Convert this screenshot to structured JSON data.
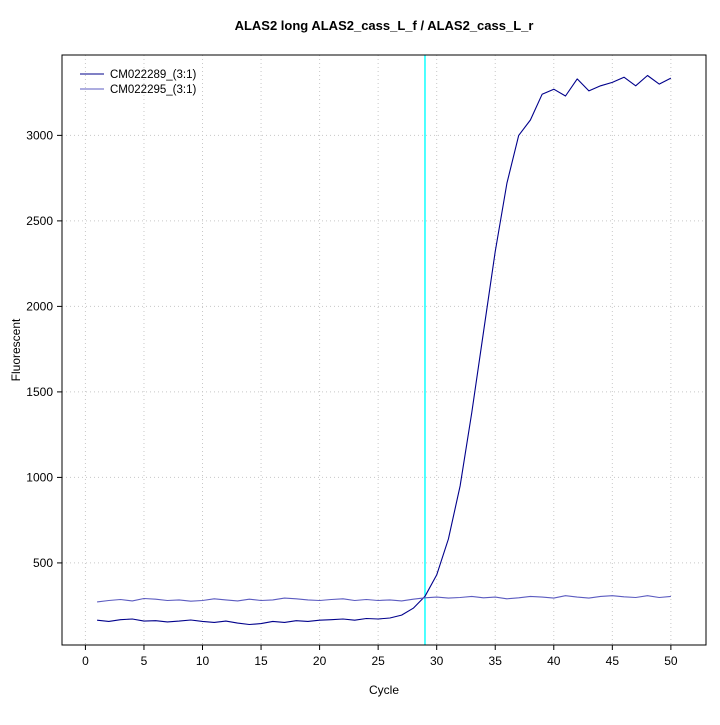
{
  "chart_data": {
    "type": "line",
    "title": "ALAS2 long ALAS2_cass_L_f / ALAS2_cass_L_r",
    "xlabel": "Cycle",
    "ylabel": "Fluorescent",
    "xlim": [
      -2,
      53
    ],
    "ylim": [
      20,
      3470
    ],
    "x_ticks": [
      0,
      5,
      10,
      15,
      20,
      25,
      30,
      35,
      40,
      45,
      50
    ],
    "y_ticks": [
      500,
      1000,
      1500,
      2000,
      2500,
      3000
    ],
    "grid": true,
    "legend_position": "top-left",
    "threshold_line": {
      "x": 29,
      "color": "#00FFFF"
    },
    "colors": {
      "grid": "#c8c8c8",
      "axis": "#000000",
      "background": "#ffffff"
    },
    "x_start": 1,
    "x_step": 1,
    "series": [
      {
        "name": "CM022289_(3:1)",
        "color": "#00008B",
        "values": [
          165,
          158,
          168,
          172,
          160,
          162,
          155,
          160,
          166,
          158,
          152,
          160,
          148,
          140,
          145,
          158,
          152,
          162,
          158,
          165,
          168,
          172,
          165,
          175,
          172,
          178,
          195,
          235,
          305,
          430,
          640,
          950,
          1380,
          1850,
          2320,
          2720,
          3000,
          3090,
          3240,
          3270,
          3230,
          3330,
          3260,
          3290,
          3310,
          3340,
          3290,
          3350,
          3300,
          3335
        ]
      },
      {
        "name": "CM022295_(3:1)",
        "color": "#5B5BC0",
        "values": [
          272,
          280,
          286,
          278,
          292,
          288,
          280,
          284,
          276,
          280,
          290,
          284,
          278,
          288,
          280,
          284,
          294,
          290,
          284,
          280,
          286,
          290,
          280,
          286,
          280,
          284,
          278,
          288,
          296,
          300,
          294,
          298,
          304,
          296,
          300,
          290,
          296,
          304,
          300,
          294,
          308,
          300,
          294,
          304,
          308,
          302,
          298,
          308,
          298,
          304
        ]
      }
    ]
  }
}
